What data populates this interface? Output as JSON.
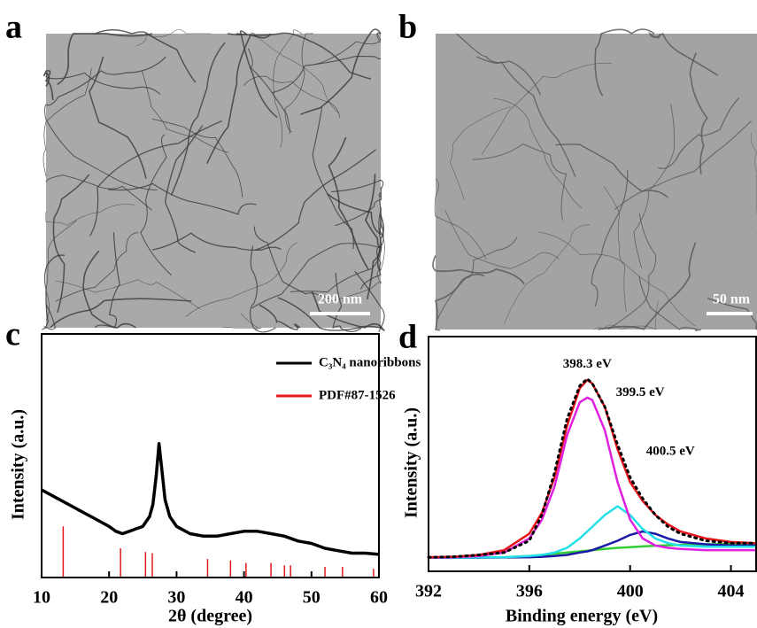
{
  "images": [
    {
      "label": "a",
      "scale_bar": "200 nm"
    },
    {
      "label": "b",
      "scale_bar": "50 nm"
    }
  ],
  "chart_data": [
    {
      "type": "line",
      "panel_label": "c",
      "x_label": "2θ (degree)",
      "y_label": "Intensity (a.u.)",
      "xlim": [
        10,
        60
      ],
      "xticks": [
        10,
        20,
        30,
        40,
        50,
        60
      ],
      "ylim": [
        0,
        100
      ],
      "legend": "top-right",
      "series": [
        {
          "name": "C₃N₄ nanoribbons",
          "color": "#000000",
          "style": "line",
          "x": [
            10,
            12,
            14,
            16,
            18,
            20,
            21,
            22,
            23,
            24,
            25,
            26,
            26.5,
            27,
            27.4,
            27.8,
            28.3,
            29,
            30,
            32,
            34,
            36,
            38,
            40,
            42,
            44,
            46,
            48,
            50,
            52,
            54,
            56,
            58,
            60
          ],
          "values": [
            36,
            33,
            30,
            27,
            24,
            21,
            19,
            18,
            19,
            20,
            21,
            25,
            30,
            42,
            55,
            45,
            32,
            25,
            21,
            18,
            17,
            17,
            18,
            19,
            19,
            18,
            17,
            15,
            14,
            12,
            11,
            10,
            10,
            9.5
          ]
        },
        {
          "name": "PDF#87-1526",
          "color": "#e41a1c",
          "style": "stick",
          "x": [
            13.2,
            21.7,
            25.4,
            26.4,
            34.6,
            38,
            40.3,
            44,
            46,
            46.9,
            52,
            54.6,
            59.2
          ],
          "values": [
            21,
            12,
            10.5,
            10,
            7.6,
            7,
            6,
            6,
            5,
            5,
            4.4,
            4.4,
            3.6
          ]
        }
      ]
    },
    {
      "type": "line",
      "panel_label": "d",
      "x_label": "Binding energy (eV)",
      "y_label": "Intensity (a.u.)",
      "xlim": [
        392,
        405
      ],
      "xticks": [
        392,
        396,
        400,
        404
      ],
      "ylim": [
        0,
        100
      ],
      "annotations": [
        "398.3 eV",
        "399.5 eV",
        "400.5 eV"
      ],
      "x": [
        392,
        393,
        394,
        395,
        396,
        396.5,
        397,
        397.5,
        398,
        398.3,
        398.5,
        399,
        399.5,
        400,
        400.5,
        401,
        401.5,
        402,
        403,
        404,
        405
      ],
      "series": [
        {
          "color": "#33cc33",
          "style": "line",
          "values": [
            5.8,
            5.8,
            5.9,
            6,
            6.5,
            7,
            7.5,
            8,
            8.5,
            8.8,
            9,
            9.5,
            10,
            10.3,
            10.6,
            10.9,
            11.1,
            11.3,
            11.5,
            11.6,
            11.6
          ]
        },
        {
          "color": "#1a1aa6",
          "style": "line",
          "values": [
            5.8,
            5.8,
            5.8,
            5.9,
            6,
            6.2,
            6.5,
            7,
            8,
            8.5,
            9,
            11,
            13,
            15.5,
            17,
            16,
            14,
            12.5,
            11.5,
            11,
            11
          ]
        },
        {
          "color": "#22e0e8",
          "style": "line",
          "values": [
            5.8,
            5.8,
            5.9,
            6,
            6.5,
            7,
            8,
            10,
            14,
            17,
            19,
            24,
            27.7,
            24,
            18,
            14,
            12,
            11,
            10.5,
            10.5,
            10.5
          ]
        },
        {
          "color": "#e020e0",
          "style": "line",
          "values": [
            5.8,
            6,
            6.5,
            8,
            14,
            22,
            36,
            58,
            72,
            74,
            73,
            60,
            38,
            22,
            14,
            11,
            10,
            9.5,
            9,
            9,
            9
          ]
        },
        {
          "color": "#e8141c",
          "style": "line",
          "values": [
            6,
            6.2,
            7,
            9,
            16,
            25,
            40,
            62,
            78,
            81.5,
            80,
            70,
            52,
            38,
            30,
            24,
            20,
            17,
            14,
            12.5,
            12
          ]
        },
        {
          "color": "#000000",
          "style": "dotted",
          "values": [
            6,
            6.2,
            7,
            8,
            13,
            24,
            42,
            65,
            79,
            82,
            80,
            70,
            54,
            40,
            31,
            24,
            19,
            16,
            13,
            12,
            12
          ]
        }
      ]
    }
  ]
}
